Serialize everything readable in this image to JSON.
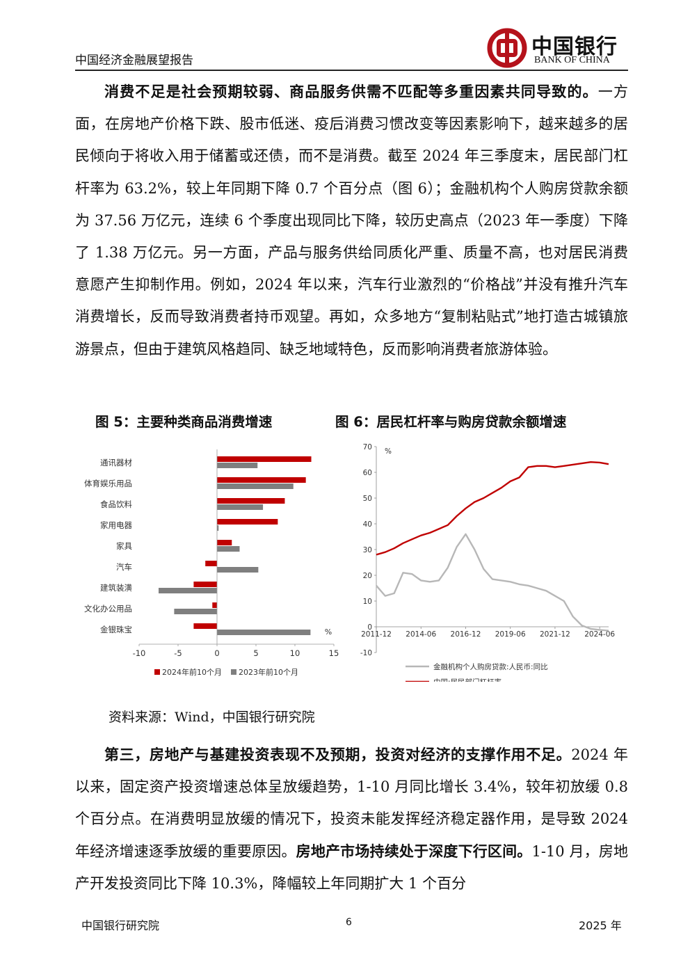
{
  "header": {
    "report_title": "中国经济金融展望报告",
    "logo_cn": "中国银行",
    "logo_en": "BANK OF CHINA"
  },
  "paragraph1": {
    "bold": "消费不足是社会预期较弱、商品服务供需不匹配等多重因素共同导致的。",
    "text": "一方面，在房地产价格下跌、股市低迷、疫后消费习惯改变等因素影响下，越来越多的居民倾向于将收入用于储蓄或还债，而不是消费。截至 2024 年三季度末，居民部门杠杆率为 63.2%，较上年同期下降 0.7 个百分点（图 6）；金融机构个人购房贷款余额为 37.56 万亿元，连续 6 个季度出现同比下降，较历史高点（2023 年一季度）下降了 1.38 万亿元。另一方面，产品与服务供给同质化严重、质量不高，也对居民消费意愿产生抑制作用。例如，2024 年以来，汽车行业激烈的“价格战”并没有推升汽车消费增长，反而导致消费者持币观望。再如，众多地方“复制粘贴式”地打造古城镇旅游景点，但由于建筑风格趋同、缺乏地域特色，反而影响消费者旅游体验。"
  },
  "figure5": {
    "title": "图 5：主要种类商品消费增速"
  },
  "figure6": {
    "title": "图 6：居民杠杆率与购房贷款余额增速"
  },
  "source": "资料来源：Wind，中国银行研究院",
  "paragraph2": {
    "bold1": "第三，房地产与基建投资表现不及预期，投资对经济的支撑作用不足。",
    "text1": "2024 年以来，固定资产投资增速总体呈放缓趋势，1-10 月同比增长 3.4%，较年初放缓 0.8 个百分点。在消费明显放缓的情况下，投资未能发挥经济稳定器作用，是导致 2024 年经济增速逐季放缓的重要原因。",
    "bold2": "房地产市场持续处于深度下行区间。",
    "text2": "1-10 月，房地产开发投资同比下降 10.3%，降幅较上年同期扩大 1 个百分"
  },
  "footer": {
    "left": "中国银行研究院",
    "page": "6",
    "right": "2025 年"
  },
  "colors": {
    "red": "#c00000",
    "gray": "#7f7f7f",
    "light_gray": "#b7b7b7"
  },
  "chart_data": [
    {
      "type": "bar",
      "orientation": "horizontal",
      "categories": [
        "通讯器材",
        "体育娱乐用品",
        "食品饮料",
        "家用电器",
        "家具",
        "汽车",
        "建筑装潢",
        "文化办公用品",
        "金银珠宝"
      ],
      "series": [
        {
          "name": "2024年前10个月",
          "color": "#c00000",
          "values": [
            12.1,
            11.4,
            8.7,
            7.8,
            1.9,
            -1.5,
            -3.0,
            -0.6,
            -3.0
          ]
        },
        {
          "name": "2023年前10个月",
          "color": "#7f7f7f",
          "values": [
            5.2,
            9.8,
            5.9,
            0.2,
            2.9,
            5.3,
            -7.5,
            -5.5,
            12.0
          ]
        }
      ],
      "unit_label": "%",
      "xlim": [
        -10,
        15
      ],
      "xticks": [
        -10,
        -5,
        0,
        5,
        10,
        15
      ],
      "legend": "bottom"
    },
    {
      "type": "line",
      "x": [
        "2011-12",
        "2012-06",
        "2012-12",
        "2013-06",
        "2013-12",
        "2014-06",
        "2014-12",
        "2015-06",
        "2015-12",
        "2016-06",
        "2016-12",
        "2017-06",
        "2017-12",
        "2018-06",
        "2018-12",
        "2019-06",
        "2019-12",
        "2020-06",
        "2020-12",
        "2021-06",
        "2021-12",
        "2022-06",
        "2022-12",
        "2023-06",
        "2023-12",
        "2024-06",
        "2024-09"
      ],
      "xticks": [
        "2011-12",
        "2014-06",
        "2016-12",
        "2019-06",
        "2021-12",
        "2024-06"
      ],
      "series": [
        {
          "name": "金融机构个人购房贷款:人民币:同比",
          "color": "#b7b7b7",
          "values": [
            16,
            12,
            13,
            21,
            20.5,
            18,
            17.5,
            18,
            23,
            31,
            36,
            30,
            22.5,
            18.5,
            18,
            17.5,
            16.5,
            16,
            15,
            14,
            12,
            10,
            4,
            0.5,
            -0.8,
            -1.2,
            -1.5
          ]
        },
        {
          "name": "中国:居民部门杠杆率",
          "color": "#c00000",
          "values": [
            28,
            29,
            30.5,
            32.5,
            34,
            35.5,
            36.5,
            38,
            39.5,
            43,
            46,
            48.5,
            50,
            52,
            54,
            56.5,
            58,
            62,
            62.5,
            62.5,
            62,
            62.5,
            63,
            63.5,
            64,
            63.8,
            63.2
          ]
        }
      ],
      "unit_label": "%",
      "ylim": [
        -10,
        70
      ],
      "yticks": [
        -10,
        0,
        10,
        20,
        30,
        40,
        50,
        60,
        70
      ],
      "legend": "bottom"
    }
  ]
}
